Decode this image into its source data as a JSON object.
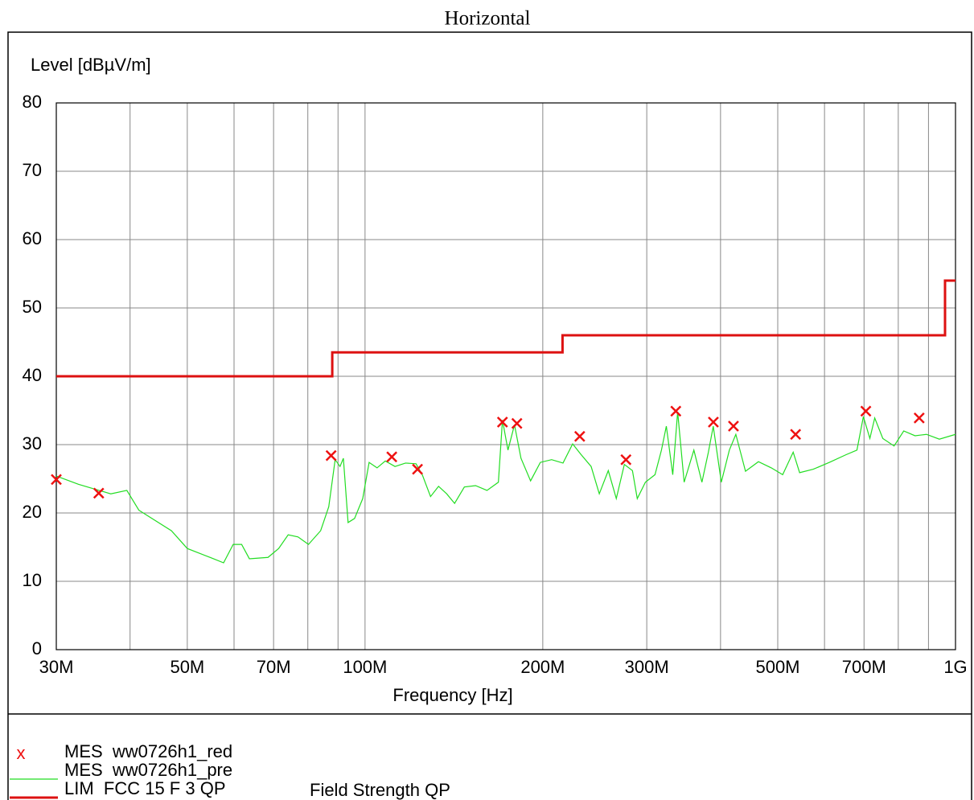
{
  "chart_data": {
    "type": "line",
    "title": "Horizontal",
    "ylabel": "Level [dBµV/m]",
    "xlabel": "Frequency [Hz]",
    "xscale": "log",
    "grid": true,
    "xlim": [
      30000000.0,
      1000000000.0
    ],
    "ylim": [
      0,
      80
    ],
    "yticks": [
      0,
      10,
      20,
      30,
      40,
      50,
      60,
      70,
      80
    ],
    "xticks": [
      {
        "value": 30000000.0,
        "label": "30M"
      },
      {
        "value": 50000000.0,
        "label": "50M"
      },
      {
        "value": 70000000.0,
        "label": "70M"
      },
      {
        "value": 100000000.0,
        "label": "100M"
      },
      {
        "value": 200000000.0,
        "label": "200M"
      },
      {
        "value": 300000000.0,
        "label": "300M"
      },
      {
        "value": 500000000.0,
        "label": "500M"
      },
      {
        "value": 700000000.0,
        "label": "700M"
      },
      {
        "value": 1000000000.0,
        "label": "1G"
      }
    ],
    "xgrid_minor": [
      40000000.0,
      60000000.0,
      80000000.0,
      90000000.0,
      400000000.0,
      600000000.0,
      800000000.0,
      900000000.0
    ],
    "series": [
      {
        "name": "MES  ww0726h1_red",
        "marker": "x",
        "color": "#ee1111",
        "x": [
          30000000.0,
          35400000.0,
          87600000.0,
          111000000.0,
          122700000.0,
          170900000.0,
          180800000.0,
          231000000.0,
          276600000.0,
          336000000.0,
          389000000.0,
          420700000.0,
          536000000.0,
          705000000.0,
          868000000.0
        ],
        "values": [
          24.9,
          22.9,
          28.4,
          28.2,
          26.4,
          33.3,
          33.1,
          31.2,
          27.8,
          34.9,
          33.3,
          32.7,
          31.5,
          34.9,
          33.9
        ]
      },
      {
        "name": "MES  ww0726h1_pre",
        "marker": "line",
        "color": "#22dd22",
        "width": 1.2,
        "x": [
          30000000.0,
          32700000.0,
          37100000.0,
          39500000.0,
          41400000.0,
          47000000.0,
          50000000.0,
          55000000.0,
          57600000.0,
          59800000.0,
          61800000.0,
          63700000.0,
          68500000.0,
          71400000.0,
          74100000.0,
          77000000.0,
          80200000.0,
          84100000.0,
          86800000.0,
          89000000.0,
          90700000.0,
          91900000.0,
          93600000.0,
          96000000.0,
          99100000.0,
          101600000.0,
          104800000.0,
          108200000.0,
          112400000.0,
          117100000.0,
          122000000.0,
          125000000.0,
          129100000.0,
          133200000.0,
          137500000.0,
          141800000.0,
          147300000.0,
          153900000.0,
          160900000.0,
          168200000.0,
          170900000.0,
          174600000.0,
          179100000.0,
          183700000.0,
          190700000.0,
          198100000.0,
          207000000.0,
          216400000.0,
          224700000.0,
          231900000.0,
          241500000.0,
          249300000.0,
          258200000.0,
          266400000.0,
          274900000.0,
          283700000.0,
          289100000.0,
          298400000.0,
          309800000.0,
          317700000.0,
          323800000.0,
          332000000.0,
          338400000.0,
          347100000.0,
          360500000.0,
          372000000.0,
          381500000.0,
          388800000.0,
          401200000.0,
          414000000.0,
          424600000.0,
          440900000.0,
          463700000.0,
          487600000.0,
          509700000.0,
          531000000.0,
          544500000.0,
          574300000.0,
          611600000.0,
          651600000.0,
          680900000.0,
          698200000.0,
          716100000.0,
          729800000.0,
          753200000.0,
          787000000.0,
          817200000.0,
          854000000.0,
          893000000.0,
          939000000.0,
          1000000000.0
        ],
        "values": [
          25.4,
          24.2,
          22.8,
          23.3,
          20.4,
          17.4,
          14.8,
          13.4,
          12.7,
          15.4,
          15.4,
          13.3,
          13.5,
          14.8,
          16.8,
          16.5,
          15.4,
          17.4,
          20.9,
          27.8,
          26.8,
          28.0,
          18.6,
          19.2,
          22.1,
          27.4,
          26.6,
          27.6,
          26.8,
          27.3,
          27.2,
          25.6,
          22.4,
          23.9,
          22.8,
          21.4,
          23.8,
          24.0,
          23.3,
          24.5,
          33.6,
          29.2,
          32.9,
          28.0,
          24.7,
          27.4,
          27.8,
          27.3,
          30.1,
          28.6,
          26.8,
          22.8,
          26.2,
          22.1,
          27.1,
          26.2,
          22.1,
          24.5,
          25.6,
          29.2,
          32.7,
          25.6,
          34.8,
          24.5,
          29.2,
          24.5,
          28.9,
          32.7,
          24.5,
          29.2,
          31.5,
          26.1,
          27.5,
          26.6,
          25.6,
          28.9,
          25.9,
          26.4,
          27.4,
          28.5,
          29.2,
          34.1,
          30.9,
          33.9,
          30.9,
          29.8,
          32.0,
          31.3,
          31.5,
          30.8,
          31.5
        ]
      },
      {
        "name": "LIM  FCC 15 F 3 QP",
        "description": "Field Strength QP",
        "marker": "line",
        "color": "#dd1111",
        "width": 3,
        "x": [
          30000000.0,
          88000000.0,
          88000000.0,
          216000000.0,
          216000000.0,
          960000000.0,
          960000000.0,
          1000000000.0
        ],
        "values": [
          40,
          40,
          43.5,
          43.5,
          46,
          46,
          54,
          54
        ]
      }
    ]
  }
}
